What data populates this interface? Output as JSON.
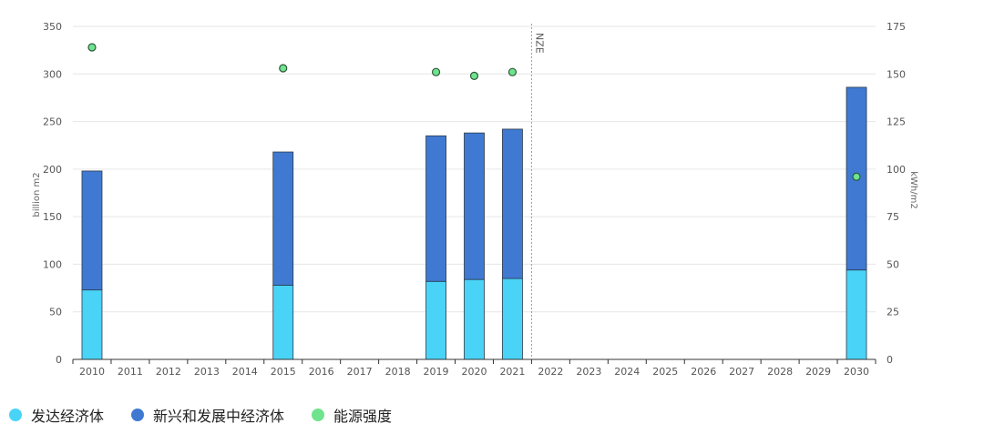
{
  "chart_data": {
    "type": "bar",
    "categories": [
      "2010",
      "2011",
      "2012",
      "2013",
      "2014",
      "2015",
      "2016",
      "2017",
      "2018",
      "2019",
      "2020",
      "2021",
      "2022",
      "2023",
      "2024",
      "2025",
      "2026",
      "2027",
      "2028",
      "2029",
      "2030"
    ],
    "series": [
      {
        "name": "发达经济体",
        "color": "#49d3f7",
        "stack": "area",
        "values": [
          73,
          null,
          null,
          null,
          null,
          78,
          null,
          null,
          null,
          82,
          84,
          85,
          null,
          null,
          null,
          null,
          null,
          null,
          null,
          null,
          94
        ]
      },
      {
        "name": "新兴和发展中经济体",
        "color": "#3f79d2",
        "stack": "area",
        "values": [
          125,
          null,
          null,
          null,
          null,
          140,
          null,
          null,
          null,
          153,
          154,
          157,
          null,
          null,
          null,
          null,
          null,
          null,
          null,
          null,
          192
        ]
      },
      {
        "name": "能源强度",
        "color": "#6fe38d",
        "type": "scatter",
        "axis": "right",
        "values": [
          164,
          null,
          null,
          null,
          null,
          153,
          null,
          null,
          null,
          151,
          149,
          151,
          null,
          null,
          null,
          null,
          null,
          null,
          null,
          null,
          96
        ]
      }
    ],
    "ylabel": "billion m2",
    "y2label": "kWh/m2",
    "ylim": [
      0,
      350
    ],
    "y2lim": [
      0,
      175
    ],
    "yticks": [
      0,
      50,
      100,
      150,
      200,
      250,
      300,
      350
    ],
    "y2ticks": [
      0,
      25,
      50,
      75,
      100,
      125,
      150,
      175
    ],
    "annotation": {
      "text": "NZE",
      "between": [
        "2021",
        "2022"
      ]
    },
    "grid": true,
    "legend_position": "bottom-left"
  }
}
